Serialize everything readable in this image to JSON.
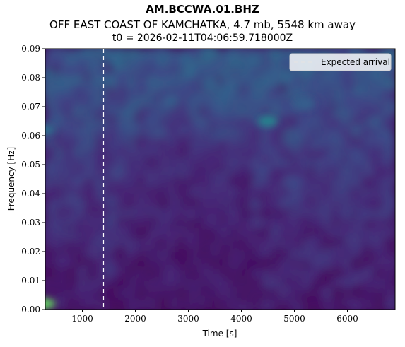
{
  "header": {
    "station": "AM.BCCWA.01.BHZ",
    "event": "OFF EAST COAST OF KAMCHATKA, 4.7 mb, 5548 km away",
    "t0": "t0 = 2026-02-11T04:06:59.718000Z"
  },
  "chart_data": {
    "type": "heatmap",
    "xlabel": "Time [s]",
    "ylabel": "Frequency [Hz]",
    "xlim": [
      300,
      6900
    ],
    "ylim": [
      0.0,
      0.09
    ],
    "x_ticks": [
      1000,
      2000,
      3000,
      4000,
      5000,
      6000
    ],
    "x_tick_labels": [
      "1000",
      "2000",
      "3000",
      "4000",
      "5000",
      "6000"
    ],
    "y_ticks": [
      0.0,
      0.01,
      0.02,
      0.03,
      0.04,
      0.05,
      0.06,
      0.07,
      0.08,
      0.09
    ],
    "y_tick_labels": [
      "0.00",
      "0.01",
      "0.02",
      "0.03",
      "0.04",
      "0.05",
      "0.06",
      "0.07",
      "0.08",
      "0.09"
    ],
    "colormap": "viridis",
    "expected_arrival_s": 1400,
    "legend": {
      "label": "Expected arrival",
      "location": "upper right",
      "line_style": "dashed",
      "line_color": "#ffffff"
    },
    "bright_spots": [
      {
        "time_s": 300,
        "freq_hz": 0.002,
        "intensity": 0.75
      },
      {
        "time_s": 4500,
        "freq_hz": 0.065,
        "intensity": 0.45
      },
      {
        "time_s": 300,
        "freq_hz": 0.062,
        "intensity": 0.35
      },
      {
        "time_s": 5200,
        "freq_hz": 0.071,
        "intensity": 0.3
      }
    ],
    "grid": false
  }
}
